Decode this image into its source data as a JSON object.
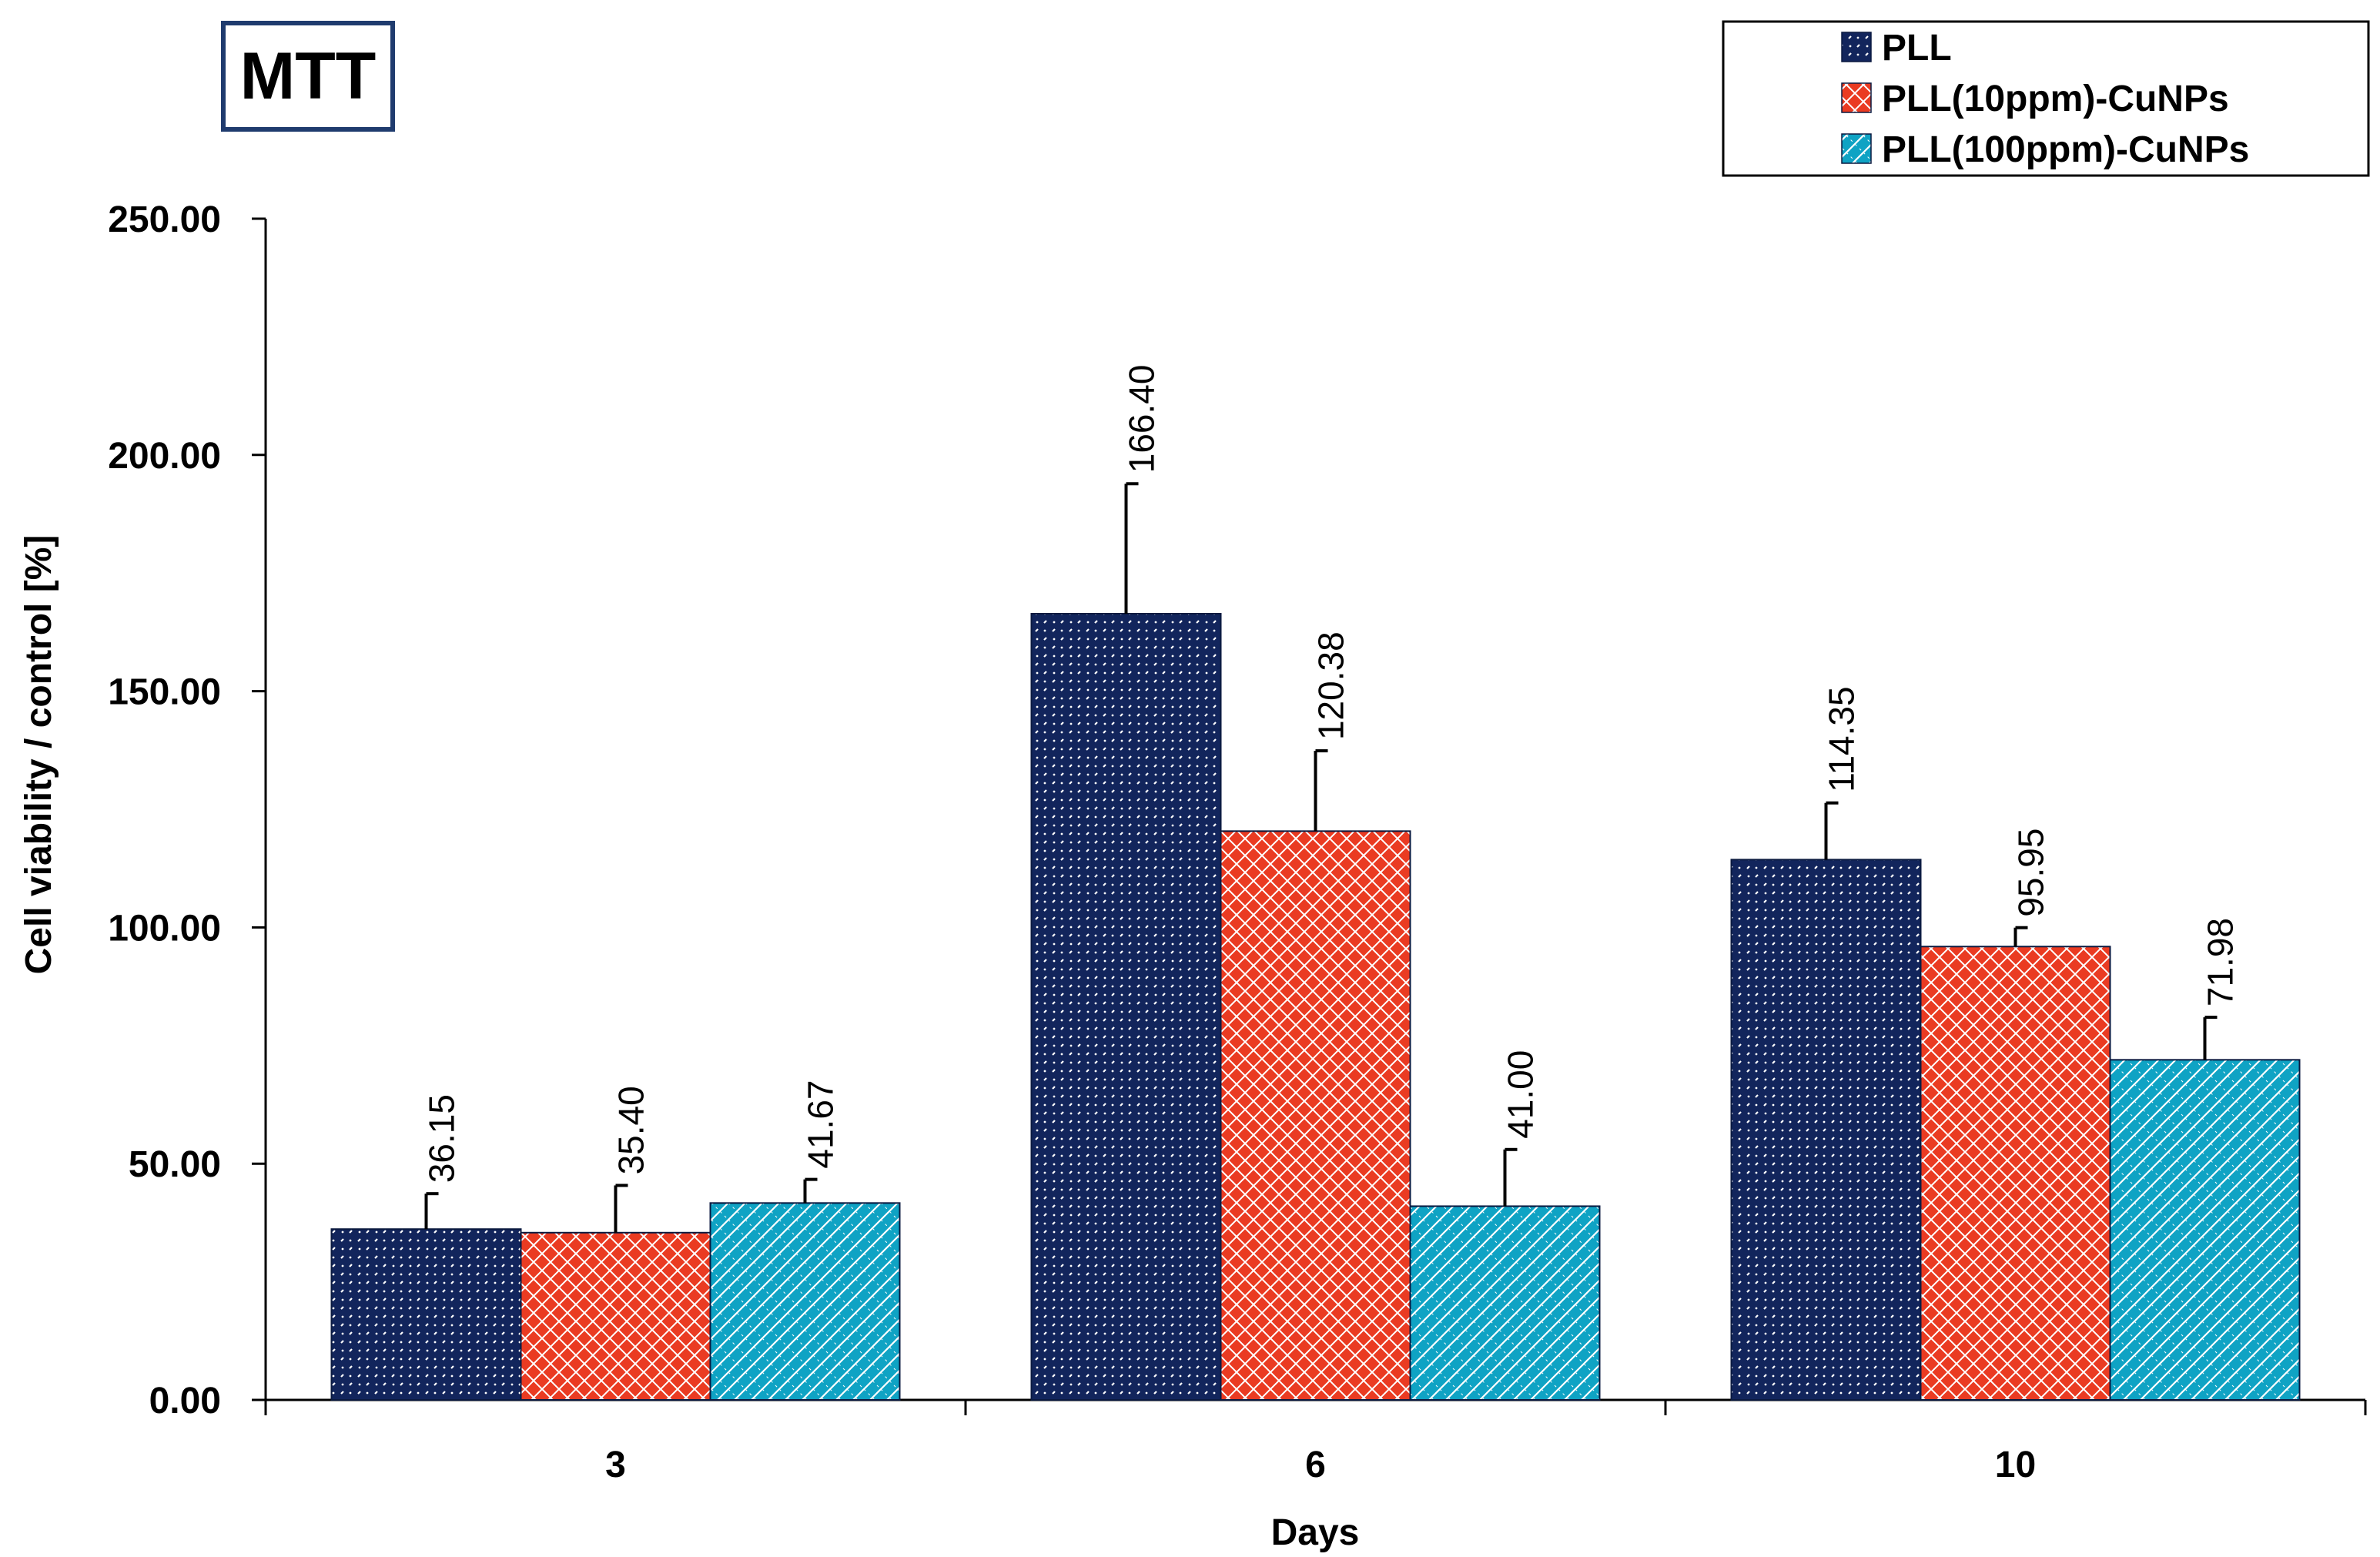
{
  "chart_data": {
    "type": "bar",
    "title": "MTT",
    "xlabel": "Days",
    "ylabel": "Cell viability / control [%]",
    "categories": [
      "3",
      "6",
      "10"
    ],
    "ylim": [
      0,
      250
    ],
    "yticks": [
      "0.00",
      "50.00",
      "100.00",
      "150.00",
      "200.00",
      "250.00"
    ],
    "grid": false,
    "legend_position": "top-right",
    "series": [
      {
        "name": "PLL",
        "color": "#12255c",
        "values": [
          36.15,
          166.4,
          114.35
        ],
        "labels": [
          "36.15",
          "166.40",
          "114.35"
        ],
        "error": [
          7.5,
          27.5,
          12.0
        ]
      },
      {
        "name": "PLL(10ppm)-CuNPs",
        "color": "#ea3b22",
        "values": [
          35.4,
          120.38,
          95.95
        ],
        "labels": [
          "35.40",
          "120.38",
          "95.95"
        ],
        "error": [
          10.0,
          17.0,
          4.0
        ]
      },
      {
        "name": "PLL(100ppm)-CuNPs",
        "color": "#0fa3c4",
        "values": [
          41.67,
          41.0,
          71.98
        ],
        "labels": [
          "41.67",
          "41.00",
          "71.98"
        ],
        "error": [
          5.0,
          12.0,
          9.0
        ]
      }
    ]
  }
}
